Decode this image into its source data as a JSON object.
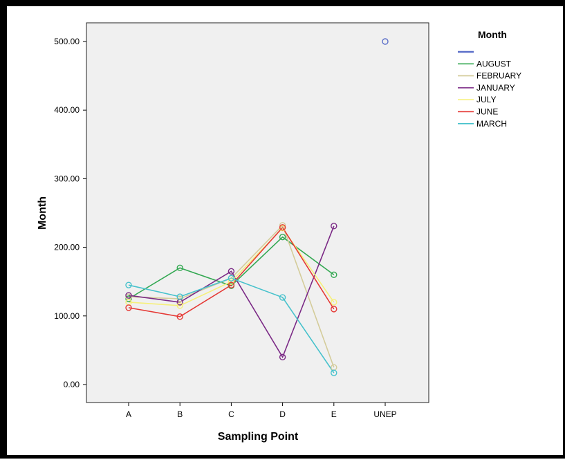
{
  "chart_data": {
    "type": "line",
    "title": "",
    "xlabel": "Sampling Point",
    "ylabel": "Month",
    "categories": [
      "A",
      "B",
      "C",
      "D",
      "E",
      "UNEP"
    ],
    "ylim": [
      -30,
      530
    ],
    "yticks": [
      0,
      100,
      200,
      300,
      400,
      500
    ],
    "ytick_labels": [
      "0.00",
      "100.00",
      "200.00",
      "300.00",
      "400.00",
      "500.00"
    ],
    "grid": false,
    "legend": {
      "title": "Month",
      "placement": "right",
      "entries": [
        "",
        "AUGUST",
        "FEBRUARY",
        "JANUARY",
        "JULY",
        "JUNE",
        "MARCH"
      ]
    },
    "series": [
      {
        "name": "",
        "color": "#5b6fc9",
        "values": [
          null,
          null,
          null,
          null,
          null,
          500
        ]
      },
      {
        "name": "AUGUST",
        "color": "#33a852",
        "values": [
          125,
          170,
          144,
          215,
          160,
          null
        ]
      },
      {
        "name": "FEBRUARY",
        "color": "#d4cc9a",
        "values": [
          128,
          125,
          155,
          232,
          25,
          null
        ]
      },
      {
        "name": "JANUARY",
        "color": "#7b2a86",
        "values": [
          130,
          120,
          165,
          40,
          231,
          null
        ]
      },
      {
        "name": "JULY",
        "color": "#f6f07a",
        "values": [
          120,
          115,
          150,
          228,
          120,
          null
        ]
      },
      {
        "name": "JUNE",
        "color": "#e53935",
        "values": [
          112,
          99,
          145,
          229,
          110,
          null
        ]
      },
      {
        "name": "MARCH",
        "color": "#47c2cc",
        "values": [
          145,
          128,
          155,
          127,
          17,
          null
        ]
      }
    ]
  }
}
